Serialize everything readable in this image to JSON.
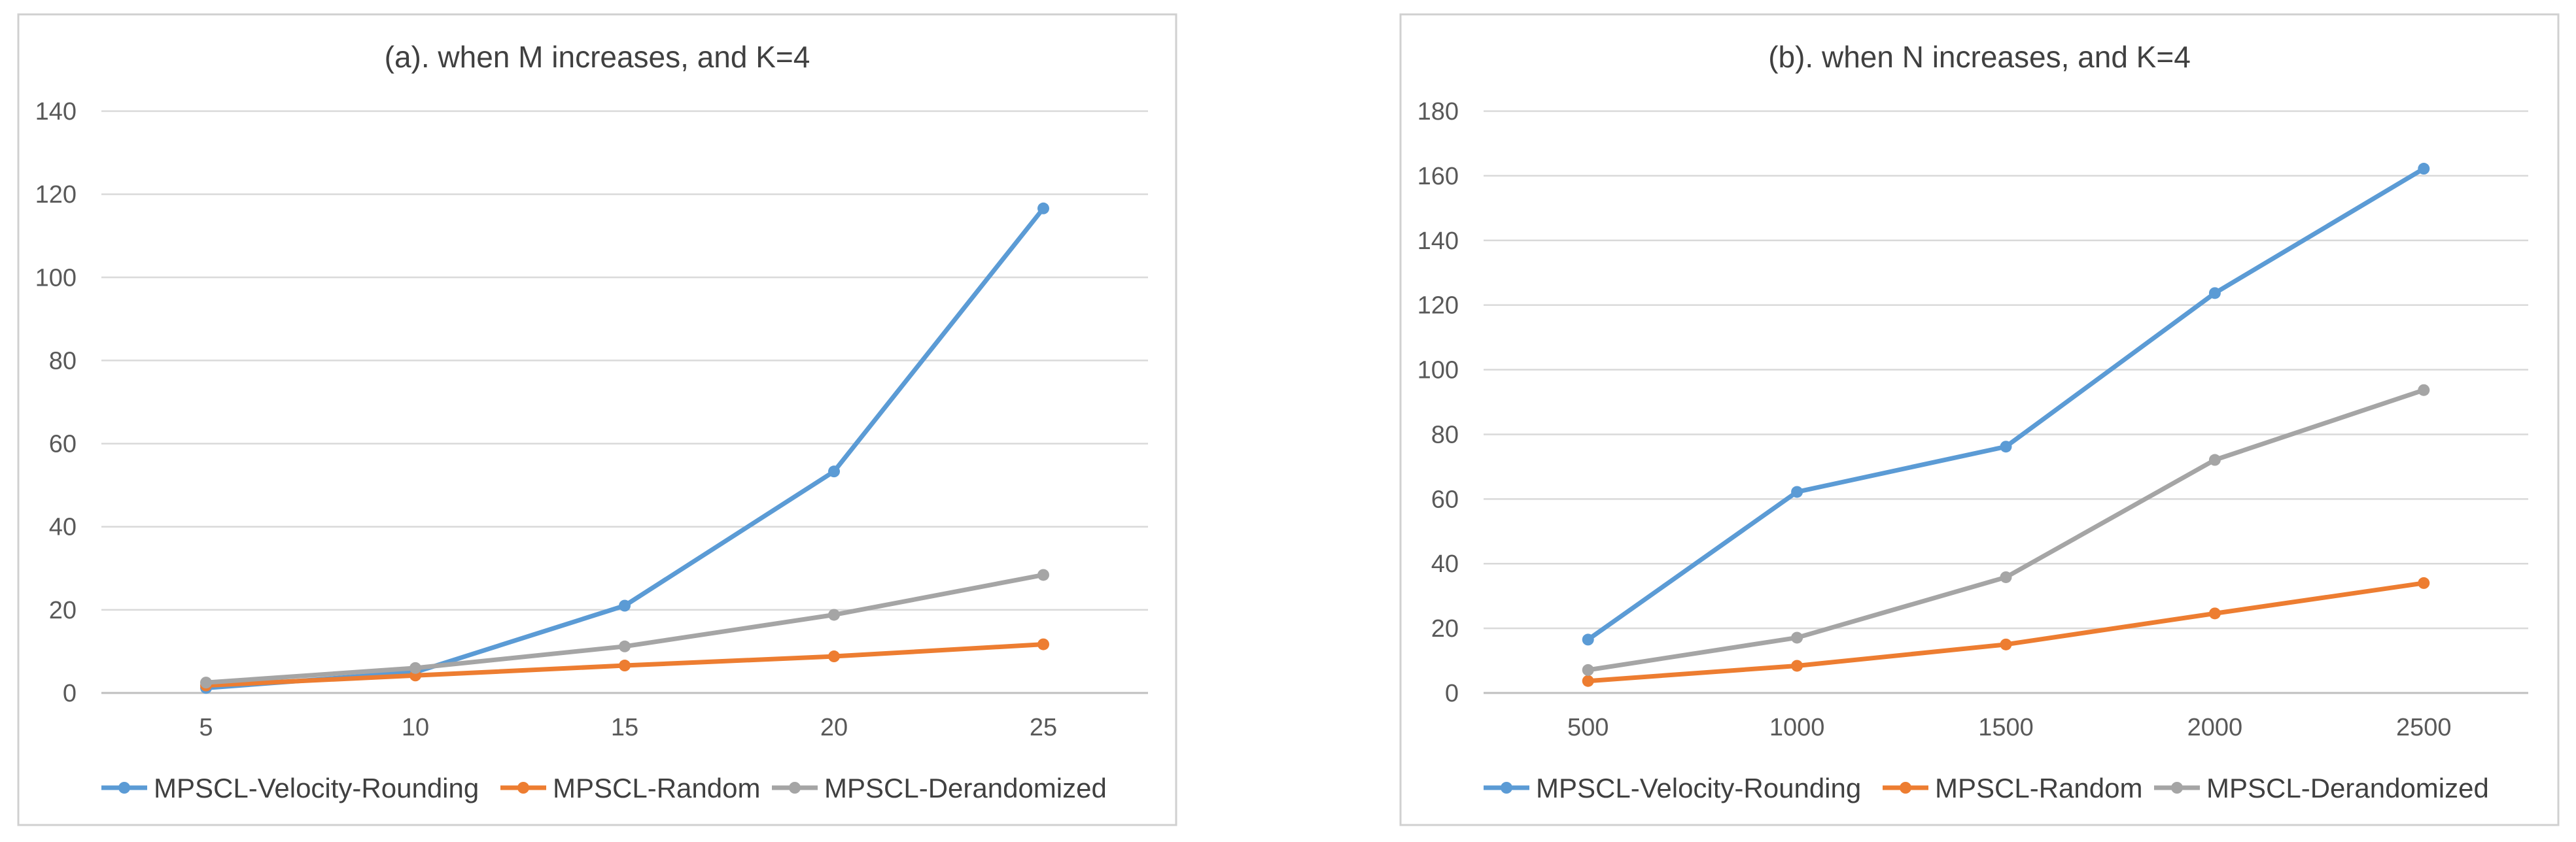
{
  "colors": {
    "velocity": "#5b9bd5",
    "random": "#ed7d31",
    "derandomized": "#a5a5a5"
  },
  "chart_data": [
    {
      "type": "line",
      "title": "(a). when M increases, and K=4",
      "xlabel": "",
      "ylabel": "",
      "categories": [
        "5",
        "10",
        "15",
        "20",
        "25"
      ],
      "ylim": [
        0,
        140
      ],
      "yticks": [
        "0",
        "20",
        "40",
        "60",
        "80",
        "100",
        "120",
        "140"
      ],
      "grid": true,
      "legend_position": "bottom",
      "series": [
        {
          "name": "MPSCL-Velocity-Rounding",
          "color_key": "velocity",
          "values": [
            1.2,
            5,
            21,
            53.3,
            116.6
          ]
        },
        {
          "name": "MPSCL-Random",
          "color_key": "random",
          "values": [
            1.8,
            4.2,
            6.6,
            8.8,
            11.7
          ]
        },
        {
          "name": "MPSCL-Derandomized",
          "color_key": "derandomized",
          "values": [
            2.5,
            6,
            11.2,
            18.8,
            28.4
          ]
        }
      ]
    },
    {
      "type": "line",
      "title": "(b). when N increases, and K=4",
      "xlabel": "",
      "ylabel": "",
      "categories": [
        "500",
        "1000",
        "1500",
        "2000",
        "2500"
      ],
      "ylim": [
        0,
        180
      ],
      "yticks": [
        "0",
        "20",
        "40",
        "60",
        "80",
        "100",
        "120",
        "140",
        "160",
        "180"
      ],
      "grid": true,
      "legend_position": "bottom",
      "series": [
        {
          "name": "MPSCL-Velocity-Rounding",
          "color_key": "velocity",
          "values": [
            16.5,
            62.2,
            76.2,
            123.7,
            162.2
          ]
        },
        {
          "name": "MPSCL-Random",
          "color_key": "random",
          "values": [
            3.7,
            8.4,
            15,
            24.6,
            34
          ]
        },
        {
          "name": "MPSCL-Derandomized",
          "color_key": "derandomized",
          "values": [
            7.1,
            17.1,
            35.8,
            72.1,
            93.7
          ]
        }
      ]
    }
  ]
}
